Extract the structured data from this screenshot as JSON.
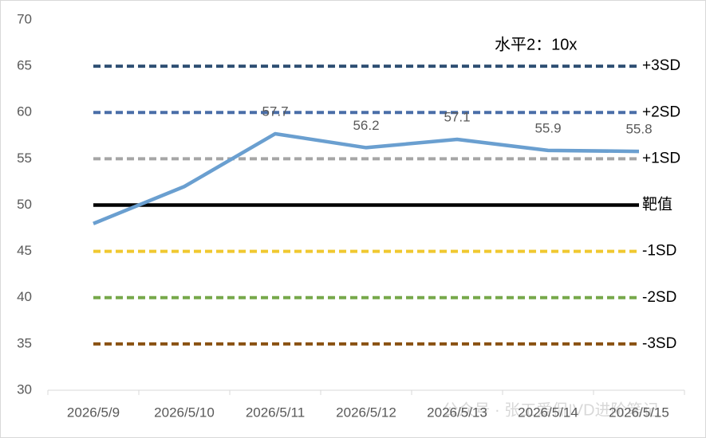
{
  "chart_data": {
    "type": "line",
    "annotation": "水平2：10x",
    "watermark": "公众号 · 张工爱侃IVD进阶笔记",
    "categories": [
      "2026/5/9",
      "2026/5/10",
      "2026/5/11",
      "2026/5/12",
      "2026/5/13",
      "2026/5/14",
      "2026/5/15"
    ],
    "series": [
      {
        "color": "#6a9fd0",
        "values": [
          48,
          52,
          57.7,
          56.2,
          57.1,
          55.9,
          55.8
        ],
        "value_labels": [
          null,
          null,
          "57.7",
          "56.2",
          "57.1",
          "55.9",
          "55.8"
        ]
      }
    ],
    "reference_lines": [
      {
        "name": "+3SD",
        "value": 65,
        "color": "#2e4f73",
        "dashed": true
      },
      {
        "name": "+2SD",
        "value": 60,
        "color": "#4a6ea8",
        "dashed": true
      },
      {
        "name": "+1SD",
        "value": 55,
        "color": "#a6a6a6",
        "dashed": true
      },
      {
        "name": "靶值",
        "value": 50,
        "color": "#000000",
        "dashed": false
      },
      {
        "name": "-1SD",
        "value": 45,
        "color": "#f0c830",
        "dashed": true
      },
      {
        "name": "-2SD",
        "value": 40,
        "color": "#77a84a",
        "dashed": true
      },
      {
        "name": "-3SD",
        "value": 35,
        "color": "#8a5212",
        "dashed": true
      }
    ],
    "ylim": [
      30,
      70
    ],
    "yticks": [
      30,
      35,
      40,
      45,
      50,
      55,
      60,
      65,
      70
    ],
    "grid": false
  }
}
